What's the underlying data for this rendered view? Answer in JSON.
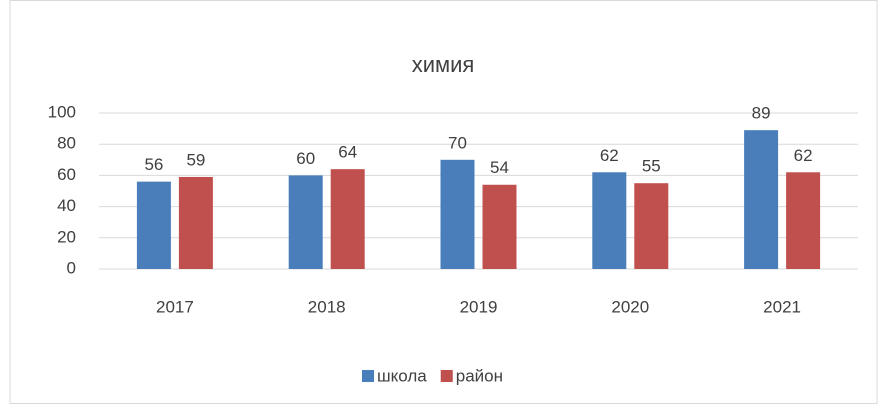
{
  "chart_data": {
    "type": "bar",
    "title": "химия",
    "categories": [
      "2017",
      "2018",
      "2019",
      "2020",
      "2021"
    ],
    "series": [
      {
        "name": "школа",
        "color": "#4a7ebb",
        "values": [
          56,
          60,
          70,
          62,
          89
        ]
      },
      {
        "name": "район",
        "color": "#c0504d",
        "values": [
          59,
          64,
          54,
          55,
          62
        ]
      }
    ],
    "ylim": [
      0,
      100
    ],
    "yticks": [
      0,
      20,
      40,
      60,
      80,
      100
    ],
    "grid": true,
    "legend": "bottom"
  }
}
